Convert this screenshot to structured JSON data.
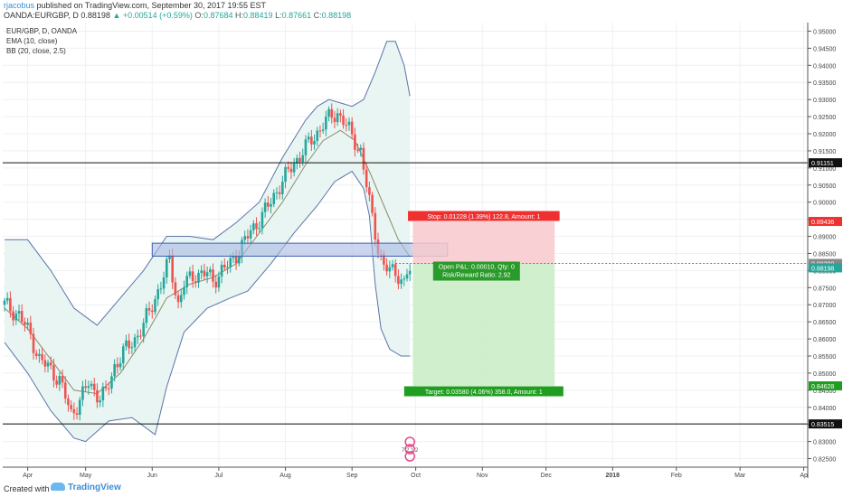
{
  "header": {
    "author": "rjacobus",
    "published": "published on TradingView.com, September 30, 2017 19:55 EST",
    "symbol": "OANDA:EURGBP, D",
    "price": "0.88198",
    "change": "▲ +0.00514 (+0.59%)",
    "o_label": "O:",
    "o_value": "0.87684",
    "h_label": "H:",
    "h_value": "0.88419",
    "l_label": "L:",
    "l_value": "0.87661",
    "c_label": "C:",
    "c_value": "0.88198"
  },
  "legend": {
    "symbol": "EUR/GBP, D, OANDA",
    "ema": "EMA (10, close)",
    "bb": "BB (20, close, 2.5)"
  },
  "footer": {
    "created": "Created with",
    "brand": "TradingView"
  },
  "colors": {
    "up": "#26a69a",
    "down": "#ef5350",
    "bbLine": "#5b74a8",
    "bbFill": "#e6f4f1",
    "ema": "#8b8b6b",
    "stopFill": "#f8c9cc",
    "targetFill": "#c8ecc4",
    "zoneFill": "#a9b9e4"
  },
  "chart_data": {
    "type": "candlestick",
    "symbol": "EUR/GBP",
    "timeframe": "D",
    "ylim": [
      0.8225,
      0.9525
    ],
    "y_ticks": [
      "0.95000",
      "0.94500",
      "0.94000",
      "0.93500",
      "0.93000",
      "0.92500",
      "0.92000",
      "0.91500",
      "0.91000",
      "0.90500",
      "0.90000",
      "0.89500",
      "0.89000",
      "0.88500",
      "0.88000",
      "0.87500",
      "0.87000",
      "0.86500",
      "0.86000",
      "0.85500",
      "0.85000",
      "0.84500",
      "0.84000",
      "0.83500",
      "0.83000",
      "0.82500"
    ],
    "x_ticks": [
      "Apr",
      "May",
      "Jun",
      "Jul",
      "Aug",
      "Sep",
      "Oct",
      "Nov",
      "Dec",
      "2018",
      "Feb",
      "Mar",
      "Ap"
    ],
    "x_tick_index": [
      8,
      28,
      51,
      74,
      97,
      120,
      142,
      165,
      187,
      210,
      232,
      254,
      276
    ],
    "bars_visible": 278,
    "close_path": [
      [
        0,
        0.87
      ],
      [
        5,
        0.867
      ],
      [
        9,
        0.861
      ],
      [
        12,
        0.854
      ],
      [
        16,
        0.851
      ],
      [
        19,
        0.848
      ],
      [
        23,
        0.838
      ],
      [
        26,
        0.842
      ],
      [
        29,
        0.847
      ],
      [
        33,
        0.843
      ],
      [
        35,
        0.844
      ],
      [
        38,
        0.852
      ],
      [
        41,
        0.856
      ],
      [
        45,
        0.86
      ],
      [
        48,
        0.864
      ],
      [
        51,
        0.87
      ],
      [
        54,
        0.876
      ],
      [
        57,
        0.883
      ],
      [
        60,
        0.87
      ],
      [
        62,
        0.876
      ],
      [
        66,
        0.879
      ],
      [
        70,
        0.879
      ],
      [
        72,
        0.877
      ],
      [
        75,
        0.88
      ],
      [
        78,
        0.882
      ],
      [
        81,
        0.886
      ],
      [
        84,
        0.89
      ],
      [
        88,
        0.895
      ],
      [
        92,
        0.9
      ],
      [
        95,
        0.905
      ],
      [
        99,
        0.91
      ],
      [
        103,
        0.915
      ],
      [
        107,
        0.919
      ],
      [
        110,
        0.923
      ],
      [
        113,
        0.925
      ],
      [
        115,
        0.926
      ],
      [
        117,
        0.924
      ],
      [
        120,
        0.919
      ],
      [
        123,
        0.915
      ],
      [
        125,
        0.905
      ],
      [
        127,
        0.895
      ],
      [
        129,
        0.887
      ],
      [
        131,
        0.881
      ],
      [
        133,
        0.88
      ],
      [
        136,
        0.879
      ],
      [
        138,
        0.876
      ],
      [
        139,
        0.879
      ],
      [
        140,
        0.88
      ]
    ],
    "ema_path": [
      [
        0,
        0.869
      ],
      [
        8,
        0.863
      ],
      [
        16,
        0.854
      ],
      [
        24,
        0.845
      ],
      [
        32,
        0.844
      ],
      [
        40,
        0.85
      ],
      [
        48,
        0.86
      ],
      [
        56,
        0.872
      ],
      [
        64,
        0.876
      ],
      [
        72,
        0.878
      ],
      [
        80,
        0.882
      ],
      [
        88,
        0.891
      ],
      [
        96,
        0.9
      ],
      [
        104,
        0.911
      ],
      [
        110,
        0.918
      ],
      [
        116,
        0.921
      ],
      [
        121,
        0.918
      ],
      [
        126,
        0.909
      ],
      [
        131,
        0.899
      ],
      [
        136,
        0.889
      ],
      [
        140,
        0.884
      ]
    ],
    "bb_upper": [
      [
        0,
        0.889
      ],
      [
        8,
        0.889
      ],
      [
        16,
        0.88
      ],
      [
        24,
        0.869
      ],
      [
        32,
        0.864
      ],
      [
        40,
        0.872
      ],
      [
        48,
        0.88
      ],
      [
        56,
        0.89
      ],
      [
        64,
        0.89
      ],
      [
        72,
        0.889
      ],
      [
        80,
        0.894
      ],
      [
        88,
        0.9
      ],
      [
        96,
        0.913
      ],
      [
        104,
        0.924
      ],
      [
        108,
        0.928
      ],
      [
        112,
        0.93
      ],
      [
        116,
        0.929
      ],
      [
        120,
        0.928
      ],
      [
        124,
        0.93
      ],
      [
        128,
        0.938
      ],
      [
        132,
        0.947
      ],
      [
        135,
        0.947
      ],
      [
        138,
        0.94
      ],
      [
        140,
        0.931
      ]
    ],
    "bb_lower": [
      [
        0,
        0.859
      ],
      [
        8,
        0.85
      ],
      [
        16,
        0.839
      ],
      [
        24,
        0.831
      ],
      [
        28,
        0.83
      ],
      [
        36,
        0.836
      ],
      [
        44,
        0.837
      ],
      [
        52,
        0.832
      ],
      [
        56,
        0.846
      ],
      [
        62,
        0.862
      ],
      [
        70,
        0.869
      ],
      [
        78,
        0.872
      ],
      [
        84,
        0.874
      ],
      [
        92,
        0.882
      ],
      [
        100,
        0.891
      ],
      [
        108,
        0.899
      ],
      [
        114,
        0.906
      ],
      [
        120,
        0.909
      ],
      [
        124,
        0.904
      ],
      [
        126,
        0.896
      ],
      [
        128,
        0.876
      ],
      [
        130,
        0.863
      ],
      [
        133,
        0.857
      ],
      [
        137,
        0.855
      ],
      [
        140,
        0.855
      ]
    ],
    "horizontal_levels": [
      "0.91151",
      "0.83515"
    ],
    "zone": {
      "from_bar": 51,
      "to_bar": 153,
      "low": 0.8842,
      "high": 0.888
    },
    "position": {
      "from_bar": 141,
      "to_bar": 190,
      "entry": 0.88208,
      "stop": 0.89436,
      "target": 0.84628,
      "entry_label": "0.88208",
      "stop_label": "0.89436",
      "target_label": "0.84628",
      "last_label": "0.88198",
      "stop_text": "Stop: 0.01228 (1.39%) 122.8, Amount: 1",
      "target_text": "Target: 0.03580 (4.06%) 358.0, Amount: 1",
      "open_text": "Open P&L: 0.00010, Qty: 0",
      "rr_text": "Risk/Reward Ratio: 2.92"
    },
    "events_label": "7 2 1 2"
  }
}
